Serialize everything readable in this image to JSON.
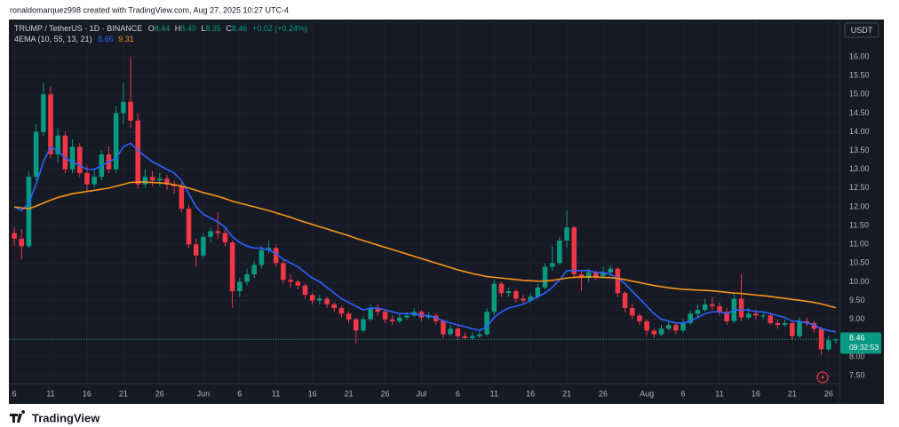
{
  "header": "ronaldomarquez998 created with TradingView.com, Aug 27, 2025 10:27 UTC-4",
  "footer": "TradingView",
  "chart_data": {
    "type": "candlestick",
    "title": "TRUMP / TetherUS · 1D · BINANCE",
    "ohlc_labels": [
      "O",
      "H",
      "L",
      "C"
    ],
    "change": "+0.02 (+0.24%)",
    "indicator": "4EMA (10, 55, 13, 21)",
    "currency": "USDT",
    "countdown": "09:32:53",
    "up_color": "#089981",
    "down_color": "#f23645",
    "grid": true,
    "ylim": [
      7.3,
      17.0
    ],
    "yticks": [
      {
        "value": 7.5,
        "label": "7.50"
      },
      {
        "value": 8,
        "label": "8.00"
      },
      {
        "value": 8.5,
        "label": "8.50"
      },
      {
        "value": 9,
        "label": "9.00"
      },
      {
        "value": 9.5,
        "label": "9.50"
      },
      {
        "value": 10,
        "label": "10.00"
      },
      {
        "value": 10.5,
        "label": "10.50"
      },
      {
        "value": 11,
        "label": "11.00"
      },
      {
        "value": 11.5,
        "label": "11.50"
      },
      {
        "value": 12,
        "label": "12.00"
      },
      {
        "value": 12.5,
        "label": "12.50"
      },
      {
        "value": 13,
        "label": "13.00"
      },
      {
        "value": 13.5,
        "label": "13.50"
      },
      {
        "value": 14,
        "label": "14.00"
      },
      {
        "value": 14.5,
        "label": "14.50"
      },
      {
        "value": 15,
        "label": "15.00"
      },
      {
        "value": 15.5,
        "label": "15.50"
      },
      {
        "value": 16,
        "label": "16.00"
      }
    ],
    "categories": [
      "6",
      null,
      null,
      null,
      null,
      "11",
      null,
      null,
      null,
      null,
      "16",
      null,
      null,
      null,
      null,
      "21",
      null,
      null,
      null,
      null,
      "26",
      null,
      null,
      null,
      null,
      null,
      "Jun",
      null,
      null,
      null,
      null,
      "6",
      null,
      null,
      null,
      null,
      "11",
      null,
      null,
      null,
      null,
      "16",
      null,
      null,
      null,
      null,
      "21",
      null,
      null,
      null,
      null,
      "26",
      null,
      null,
      null,
      null,
      "Jul",
      null,
      null,
      null,
      null,
      "6",
      null,
      null,
      null,
      null,
      "11",
      null,
      null,
      null,
      null,
      "16",
      null,
      null,
      null,
      null,
      "21",
      null,
      null,
      null,
      null,
      "26",
      null,
      null,
      null,
      null,
      null,
      "Aug",
      null,
      null,
      null,
      null,
      "6",
      null,
      null,
      null,
      null,
      "11",
      null,
      null,
      null,
      null,
      "16",
      null,
      null,
      null,
      null,
      "21",
      null,
      null,
      null,
      null,
      "26",
      null
    ],
    "ohlc": [
      [
        11.3,
        11.45,
        10.95,
        11.15
      ],
      [
        11.15,
        11.4,
        10.6,
        10.95
      ],
      [
        10.95,
        12.95,
        10.9,
        12.8
      ],
      [
        12.8,
        14.2,
        12.7,
        14.0
      ],
      [
        14.0,
        15.3,
        13.9,
        15.0
      ],
      [
        15.0,
        15.2,
        13.3,
        13.4
      ],
      [
        13.4,
        14.1,
        13.2,
        13.9
      ],
      [
        13.9,
        14.0,
        12.9,
        13.0
      ],
      [
        13.0,
        13.8,
        12.9,
        13.6
      ],
      [
        13.6,
        13.7,
        12.8,
        12.9
      ],
      [
        12.9,
        13.1,
        12.4,
        12.6
      ],
      [
        12.6,
        13.0,
        12.5,
        12.8
      ],
      [
        12.8,
        13.5,
        12.7,
        13.4
      ],
      [
        13.4,
        13.6,
        12.9,
        13.0
      ],
      [
        13.0,
        14.7,
        12.9,
        14.5
      ],
      [
        14.5,
        15.3,
        14.2,
        14.8
      ],
      [
        14.8,
        16.0,
        14.1,
        14.3
      ],
      [
        14.3,
        14.5,
        12.5,
        12.6
      ],
      [
        12.6,
        13.0,
        12.5,
        12.8
      ],
      [
        12.8,
        12.95,
        12.55,
        12.7
      ],
      [
        12.7,
        12.9,
        12.55,
        12.75
      ],
      [
        12.75,
        12.85,
        12.45,
        12.6
      ],
      [
        12.6,
        12.7,
        12.35,
        12.55
      ],
      [
        12.55,
        12.65,
        11.85,
        11.95
      ],
      [
        11.95,
        12.05,
        10.9,
        11.0
      ],
      [
        11.0,
        11.15,
        10.4,
        10.7
      ],
      [
        10.7,
        11.3,
        10.65,
        11.2
      ],
      [
        11.2,
        11.45,
        11.05,
        11.35
      ],
      [
        11.35,
        11.85,
        11.15,
        11.3
      ],
      [
        11.3,
        11.4,
        10.95,
        11.05
      ],
      [
        11.05,
        11.1,
        9.3,
        9.75
      ],
      [
        9.75,
        10.1,
        9.6,
        10.0
      ],
      [
        10.0,
        10.35,
        9.9,
        10.2
      ],
      [
        10.2,
        10.55,
        10.1,
        10.45
      ],
      [
        10.45,
        10.95,
        10.35,
        10.85
      ],
      [
        10.85,
        11.1,
        10.75,
        10.9
      ],
      [
        10.9,
        11.0,
        10.4,
        10.5
      ],
      [
        10.5,
        10.6,
        9.95,
        10.05
      ],
      [
        10.05,
        10.2,
        9.85,
        10.0
      ],
      [
        10.0,
        10.05,
        9.8,
        9.9
      ],
      [
        9.9,
        9.95,
        9.55,
        9.65
      ],
      [
        9.65,
        9.7,
        9.4,
        9.5
      ],
      [
        9.5,
        9.65,
        9.4,
        9.55
      ],
      [
        9.55,
        9.6,
        9.3,
        9.4
      ],
      [
        9.4,
        9.45,
        9.2,
        9.3
      ],
      [
        9.3,
        9.35,
        9.05,
        9.15
      ],
      [
        9.15,
        9.2,
        8.9,
        9.0
      ],
      [
        9.0,
        9.05,
        8.35,
        8.7
      ],
      [
        8.7,
        9.1,
        8.65,
        9.0
      ],
      [
        9.0,
        9.4,
        8.95,
        9.3
      ],
      [
        9.3,
        9.4,
        9.1,
        9.2
      ],
      [
        9.2,
        9.25,
        8.9,
        9.0
      ],
      [
        9.0,
        9.1,
        8.85,
        8.95
      ],
      [
        8.95,
        9.15,
        8.9,
        9.05
      ],
      [
        9.05,
        9.2,
        9.0,
        9.1
      ],
      [
        9.1,
        9.3,
        9.05,
        9.2
      ],
      [
        9.2,
        9.25,
        8.95,
        9.05
      ],
      [
        9.05,
        9.2,
        9.0,
        9.1
      ],
      [
        9.1,
        9.15,
        8.85,
        8.95
      ],
      [
        8.95,
        9.0,
        8.5,
        8.6
      ],
      [
        8.6,
        8.85,
        8.55,
        8.75
      ],
      [
        8.75,
        8.8,
        8.45,
        8.55
      ],
      [
        8.55,
        8.65,
        8.45,
        8.5
      ],
      [
        8.5,
        8.65,
        8.45,
        8.55
      ],
      [
        8.55,
        8.7,
        8.5,
        8.6
      ],
      [
        8.6,
        9.3,
        8.55,
        9.2
      ],
      [
        9.2,
        10.05,
        9.1,
        9.95
      ],
      [
        9.95,
        10.0,
        9.6,
        9.7
      ],
      [
        9.7,
        9.85,
        9.6,
        9.75
      ],
      [
        9.75,
        9.8,
        9.45,
        9.55
      ],
      [
        9.55,
        9.65,
        9.4,
        9.5
      ],
      [
        9.5,
        9.7,
        9.45,
        9.6
      ],
      [
        9.6,
        9.95,
        9.55,
        9.85
      ],
      [
        9.85,
        10.5,
        9.8,
        10.4
      ],
      [
        10.4,
        10.95,
        10.3,
        10.5
      ],
      [
        10.5,
        11.2,
        10.45,
        11.1
      ],
      [
        11.1,
        11.9,
        10.9,
        11.45
      ],
      [
        11.45,
        11.5,
        10.1,
        10.2
      ],
      [
        10.2,
        10.3,
        9.75,
        10.1
      ],
      [
        10.1,
        10.35,
        10.0,
        10.25
      ],
      [
        10.25,
        10.3,
        10.05,
        10.15
      ],
      [
        10.15,
        10.4,
        10.1,
        10.25
      ],
      [
        10.25,
        10.45,
        10.15,
        10.35
      ],
      [
        10.35,
        10.4,
        9.6,
        9.7
      ],
      [
        9.7,
        9.75,
        9.2,
        9.3
      ],
      [
        9.3,
        9.4,
        9.0,
        9.1
      ],
      [
        9.1,
        9.15,
        8.85,
        8.95
      ],
      [
        8.95,
        9.0,
        8.55,
        8.7
      ],
      [
        8.7,
        8.75,
        8.5,
        8.6
      ],
      [
        8.6,
        8.85,
        8.55,
        8.75
      ],
      [
        8.75,
        8.95,
        8.7,
        8.85
      ],
      [
        8.85,
        8.9,
        8.6,
        8.7
      ],
      [
        8.7,
        9.0,
        8.65,
        8.9
      ],
      [
        8.9,
        9.25,
        8.85,
        9.15
      ],
      [
        9.15,
        9.4,
        9.05,
        9.25
      ],
      [
        9.25,
        9.55,
        9.2,
        9.4
      ],
      [
        9.4,
        9.6,
        9.25,
        9.35
      ],
      [
        9.35,
        9.45,
        9.1,
        9.2
      ],
      [
        9.2,
        9.3,
        8.85,
        8.95
      ],
      [
        8.95,
        9.7,
        8.9,
        9.55
      ],
      [
        9.55,
        10.2,
        8.95,
        9.05
      ],
      [
        9.05,
        9.3,
        9.0,
        9.15
      ],
      [
        9.15,
        9.25,
        9.0,
        9.1
      ],
      [
        9.1,
        9.2,
        9.0,
        9.1
      ],
      [
        9.1,
        9.2,
        8.85,
        8.9
      ],
      [
        8.9,
        9.0,
        8.75,
        8.85
      ],
      [
        8.85,
        9.0,
        8.8,
        8.9
      ],
      [
        8.9,
        8.95,
        8.45,
        8.55
      ],
      [
        8.55,
        9.05,
        8.5,
        8.95
      ],
      [
        8.95,
        9.05,
        8.8,
        8.9
      ],
      [
        8.9,
        8.95,
        8.65,
        8.75
      ],
      [
        8.75,
        8.8,
        8.05,
        8.2
      ],
      [
        8.2,
        8.55,
        8.15,
        8.44
      ],
      [
        8.44,
        8.49,
        8.35,
        8.46
      ]
    ],
    "series": [
      {
        "color": "#2962ff",
        "values": [
          12.0,
          11.9,
          12.1,
          12.6,
          13.2,
          13.6,
          13.5,
          13.3,
          13.2,
          13.1,
          13.0,
          13.0,
          13.1,
          13.2,
          13.3,
          13.6,
          13.7,
          13.5,
          13.35,
          13.2,
          13.1,
          13.0,
          12.9,
          12.7,
          12.35,
          12.0,
          11.8,
          11.7,
          11.6,
          11.45,
          11.2,
          11.05,
          10.95,
          10.9,
          10.9,
          10.85,
          10.75,
          10.6,
          10.5,
          10.4,
          10.25,
          10.1,
          10.0,
          9.85,
          9.7,
          9.55,
          9.45,
          9.35,
          9.25,
          9.3,
          9.3,
          9.25,
          9.2,
          9.15,
          9.15,
          9.15,
          9.1,
          9.1,
          9.05,
          8.95,
          8.9,
          8.85,
          8.8,
          8.75,
          8.7,
          8.8,
          9.05,
          9.2,
          9.3,
          9.35,
          9.4,
          9.5,
          9.6,
          9.7,
          9.85,
          10.05,
          10.3,
          10.3,
          10.3,
          10.3,
          10.25,
          10.25,
          10.2,
          10.1,
          9.95,
          9.75,
          9.55,
          9.35,
          9.15,
          9.0,
          8.95,
          8.9,
          8.9,
          8.95,
          9.05,
          9.15,
          9.2,
          9.2,
          9.15,
          9.25,
          9.25,
          9.25,
          9.2,
          9.2,
          9.15,
          9.1,
          9.05,
          8.95,
          8.95,
          8.9,
          8.85,
          8.75,
          8.7,
          8.66
        ]
      },
      {
        "color": "#f7931a",
        "values": [
          12.0,
          11.97,
          11.95,
          12.02,
          12.1,
          12.18,
          12.25,
          12.3,
          12.35,
          12.38,
          12.41,
          12.44,
          12.47,
          12.5,
          12.55,
          12.6,
          12.65,
          12.66,
          12.66,
          12.65,
          12.64,
          12.62,
          12.59,
          12.55,
          12.5,
          12.44,
          12.38,
          12.33,
          12.28,
          12.22,
          12.15,
          12.1,
          12.05,
          12.0,
          11.95,
          11.9,
          11.84,
          11.78,
          11.72,
          11.65,
          11.59,
          11.53,
          11.47,
          11.41,
          11.35,
          11.29,
          11.23,
          11.16,
          11.1,
          11.04,
          10.98,
          10.92,
          10.86,
          10.8,
          10.74,
          10.68,
          10.62,
          10.56,
          10.5,
          10.44,
          10.38,
          10.32,
          10.27,
          10.22,
          10.18,
          10.14,
          10.12,
          10.1,
          10.08,
          10.06,
          10.04,
          10.03,
          10.02,
          10.02,
          10.04,
          10.07,
          10.1,
          10.12,
          10.13,
          10.13,
          10.13,
          10.12,
          10.11,
          10.09,
          10.06,
          10.02,
          9.98,
          9.94,
          9.9,
          9.87,
          9.84,
          9.82,
          9.8,
          9.79,
          9.78,
          9.77,
          9.76,
          9.74,
          9.72,
          9.7,
          9.69,
          9.67,
          9.65,
          9.63,
          9.61,
          9.58,
          9.56,
          9.53,
          9.51,
          9.48,
          9.45,
          9.41,
          9.36,
          9.31
        ]
      }
    ]
  }
}
